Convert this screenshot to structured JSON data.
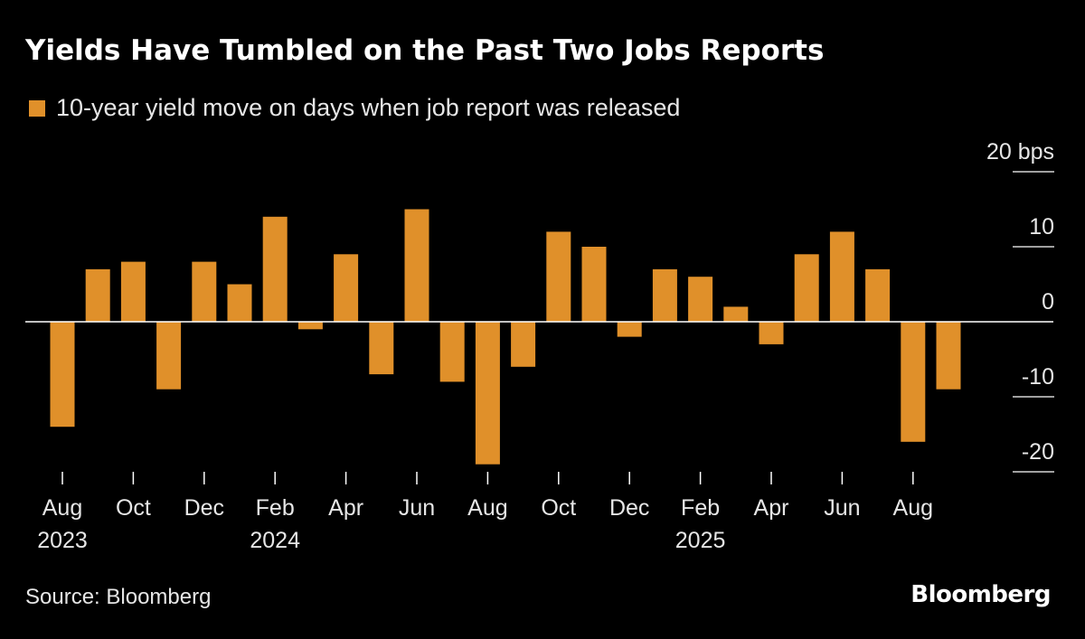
{
  "title": "Yields Have Tumbled on the Past Two Jobs Reports",
  "source": "Source: Bloomberg",
  "logo_text": "Bloomberg",
  "colors": {
    "bar": "#e0902a",
    "background": "#000000",
    "text": "#ffffff",
    "axis": "#ffffff"
  },
  "chart_data": {
    "type": "bar",
    "series": [
      {
        "name": "10-year yield move on days when job report was released",
        "values": [
          -14,
          7,
          8,
          -9,
          8,
          5,
          14,
          -1,
          9,
          -7,
          15,
          -8,
          -19,
          -6,
          12,
          10,
          -2,
          7,
          6,
          2,
          -3,
          9,
          12,
          7,
          -16,
          -9
        ]
      }
    ],
    "categories": [
      "2023-08",
      "2023-09",
      "2023-10",
      "2023-11",
      "2023-12",
      "2024-01",
      "2024-02",
      "2024-03",
      "2024-04",
      "2024-05",
      "2024-06",
      "2024-07",
      "2024-08",
      "2024-09",
      "2024-10",
      "2024-11",
      "2024-12",
      "2025-01",
      "2025-02",
      "2025-03",
      "2025-04",
      "2025-05",
      "2025-06",
      "2025-07",
      "2025-08",
      "2025-09"
    ],
    "x_tick_labels": [
      {
        "category": "2023-08",
        "label": "Aug",
        "year": "2023"
      },
      {
        "category": "2023-10",
        "label": "Oct",
        "year": ""
      },
      {
        "category": "2023-12",
        "label": "Dec",
        "year": ""
      },
      {
        "category": "2024-02",
        "label": "Feb",
        "year": "2024"
      },
      {
        "category": "2024-04",
        "label": "Apr",
        "year": ""
      },
      {
        "category": "2024-06",
        "label": "Jun",
        "year": ""
      },
      {
        "category": "2024-08",
        "label": "Aug",
        "year": ""
      },
      {
        "category": "2024-10",
        "label": "Oct",
        "year": ""
      },
      {
        "category": "2024-12",
        "label": "Dec",
        "year": ""
      },
      {
        "category": "2025-02",
        "label": "Feb",
        "year": "2025"
      },
      {
        "category": "2025-04",
        "label": "Apr",
        "year": ""
      },
      {
        "category": "2025-06",
        "label": "Jun",
        "year": ""
      },
      {
        "category": "2025-08",
        "label": "Aug",
        "year": ""
      }
    ],
    "y_ticks": [
      {
        "value": 20,
        "label": "20 bps"
      },
      {
        "value": 10,
        "label": "10"
      },
      {
        "value": 0,
        "label": "0"
      },
      {
        "value": -10,
        "label": "-10"
      },
      {
        "value": -20,
        "label": "-20"
      }
    ],
    "ylim": [
      -20,
      20
    ],
    "grid": false,
    "legend_position": "top-left"
  }
}
